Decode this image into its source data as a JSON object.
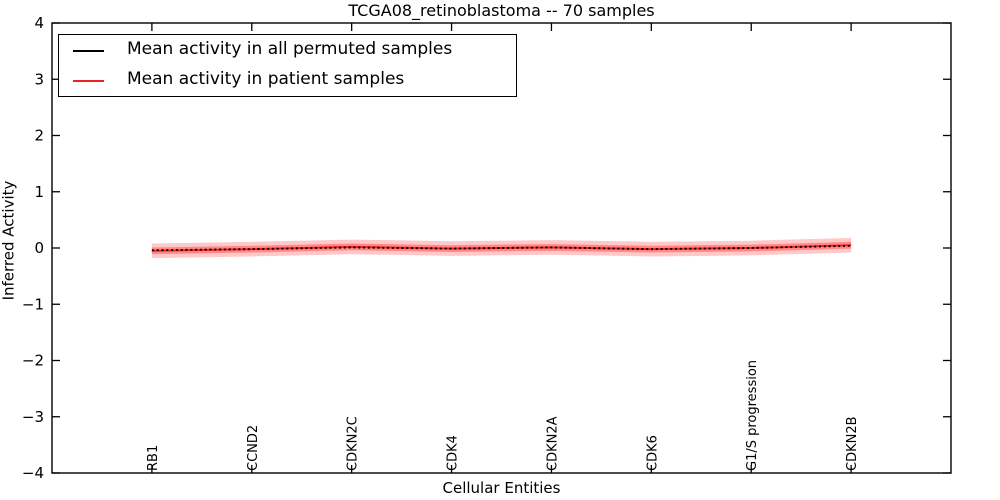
{
  "chart_data": {
    "type": "line",
    "title": "TCGA08_retinoblastoma -- 70 samples",
    "xlabel": "Cellular Entities",
    "ylabel": "Inferred Activity",
    "categories": [
      "RB1",
      "CCND2",
      "CDKN2C",
      "CDK4",
      "CDKN2A",
      "CDK6",
      "G1/S progression",
      "CDKN2B"
    ],
    "ylim": [
      -4,
      4
    ],
    "yticks": [
      {
        "value": 4,
        "label": "4"
      },
      {
        "value": 3,
        "label": "3"
      },
      {
        "value": 2,
        "label": "2"
      },
      {
        "value": 1,
        "label": "1"
      },
      {
        "value": 0,
        "label": "0"
      },
      {
        "value": -1,
        "label": "−1"
      },
      {
        "value": -2,
        "label": "−2"
      },
      {
        "value": -3,
        "label": "−3"
      },
      {
        "value": -4,
        "label": "−4"
      }
    ],
    "series": [
      {
        "name": "Mean activity in all permuted samples",
        "color": "#000000",
        "linestyle": "dashed",
        "values": [
          -0.04,
          -0.02,
          0.01,
          -0.01,
          0.01,
          -0.02,
          0.0,
          0.04
        ]
      },
      {
        "name": "Mean activity in patient samples",
        "color": "#ee2222",
        "linestyle": "solid",
        "values": [
          -0.05,
          -0.02,
          0.02,
          -0.01,
          0.01,
          -0.02,
          0.0,
          0.05
        ]
      }
    ],
    "band": {
      "around": "Mean activity in patient samples",
      "color": "#ff3c3c",
      "outer_halfwidth": 0.13,
      "outer_alpha": 0.28,
      "inner_halfwidth": 0.06,
      "inner_alpha": 0.45
    },
    "legend_position": "upper left",
    "grid": false,
    "axis_color": "#000000"
  }
}
